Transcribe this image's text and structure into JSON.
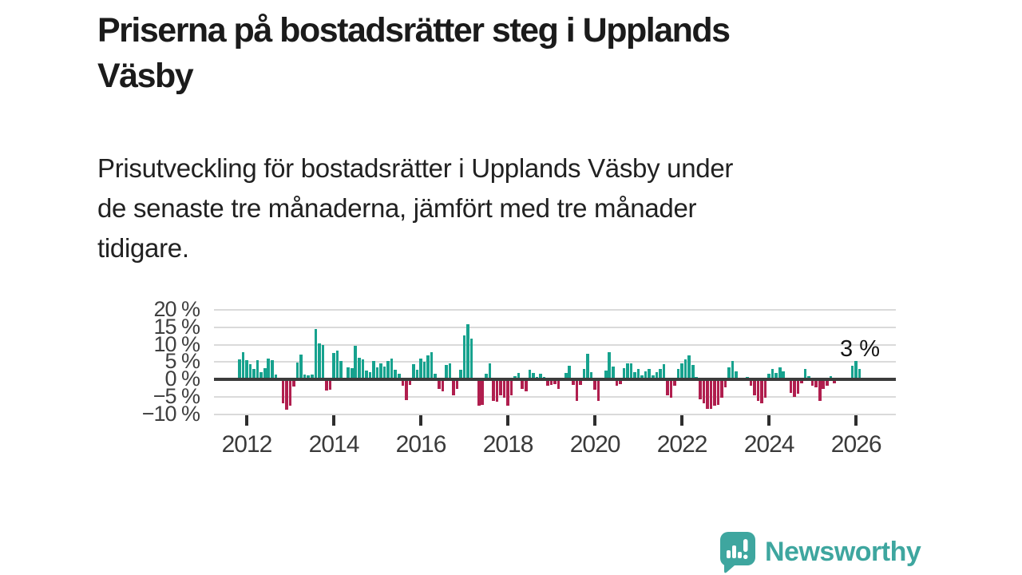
{
  "header": {
    "title": "Priserna på bostadsrätter steg i Upplands Väsby",
    "title_lines": [
      "Priserna på bostadsrätter steg i Upplands",
      "Väsby"
    ],
    "subtitle": "Prisutveckling för bostadsrätter i Upplands Väsby under de senaste tre månaderna, jämfört med tre månader tidigare.",
    "subtitle_lines": [
      "Prisutveckling för bostadsrätter i Upplands Väsby under",
      "de senaste tre månaderna, jämfört med tre månader",
      "tidigare."
    ]
  },
  "chart_data": {
    "type": "bar",
    "unit": "%",
    "interval": "monthly",
    "start": "2011-11",
    "ylim": [
      -10,
      20
    ],
    "grid": true,
    "yticks": [
      {
        "label": "20 %",
        "value": 20
      },
      {
        "label": "15 %",
        "value": 15
      },
      {
        "label": "10 %",
        "value": 10
      },
      {
        "label": "5 %",
        "value": 5
      },
      {
        "label": "0 %",
        "value": 0
      },
      {
        "label": "−5 %",
        "value": -5
      },
      {
        "label": "−10 %",
        "value": -10
      }
    ],
    "xticks": [
      "2012",
      "2014",
      "2016",
      "2018",
      "2020",
      "2022",
      "2024",
      "2026"
    ],
    "annotation": {
      "text": "3 %",
      "value": 3
    },
    "colors": {
      "positive": "#17a28e",
      "negative": "#b01e4e",
      "axis": "#3c3c3c",
      "grid": "#dadada"
    },
    "values": [
      5.8,
      7.9,
      5.6,
      4.4,
      3.1,
      5.6,
      2.1,
      3.3,
      5.9,
      5.6,
      1.3,
      0,
      -6.9,
      -8.7,
      -7.5,
      -2.1,
      4.8,
      7.2,
      1.4,
      1.2,
      1.3,
      14.5,
      10.3,
      9.8,
      -3.3,
      -3.1,
      7.7,
      8.3,
      5.4,
      0,
      3.5,
      3.3,
      9.7,
      6.2,
      5.8,
      2.6,
      2.1,
      5.4,
      3.5,
      4.6,
      3.7,
      5.4,
      5.9,
      2.7,
      1.5,
      -1.9,
      -6.0,
      -1.5,
      4.4,
      2.7,
      5.9,
      5.0,
      6.9,
      7.8,
      1.7,
      -2.7,
      -3.4,
      4.2,
      4.6,
      -4.6,
      -2.7,
      2.7,
      12.7,
      15.8,
      11.7,
      0,
      -7.7,
      -7.3,
      1.5,
      4.6,
      -6.2,
      -6.5,
      -4.6,
      -5.4,
      -7.7,
      -4.6,
      0.9,
      1.9,
      -2.7,
      -3.5,
      2.7,
      1.9,
      0.8,
      1.5,
      0.8,
      -1.9,
      -1.5,
      -1.4,
      -2.7,
      0,
      1.9,
      3.8,
      -1.5,
      -6.2,
      -1.7,
      3.0,
      7.4,
      2.0,
      -3.0,
      -6.2,
      0,
      2.6,
      7.8,
      3.7,
      -1.9,
      -1.4,
      3.3,
      4.6,
      4.6,
      2.1,
      2.9,
      1.2,
      2.3,
      3.0,
      1.2,
      2.0,
      2.9,
      4.4,
      -4.6,
      -5.4,
      -1.9,
      3.1,
      4.6,
      5.8,
      6.9,
      4.2,
      0.8,
      -5.8,
      -6.9,
      -8.5,
      -8.5,
      -7.7,
      -7.3,
      -5.4,
      -2.3,
      3.5,
      5.4,
      2.3,
      0,
      0,
      0.8,
      -1.9,
      -4.6,
      -6.2,
      -7.0,
      -5.4,
      1.5,
      3.1,
      1.9,
      3.5,
      2.3,
      0,
      -3.8,
      -5.0,
      -4.2,
      -1.2,
      3.1,
      0.9,
      -1.9,
      -2.3,
      -6.2,
      -2.7,
      -1.9,
      1.0,
      -1.2,
      0,
      0,
      0,
      0,
      3.8,
      5.2,
      3.0
    ]
  },
  "footer": {
    "brand_name": "Newsworthy",
    "brand_color": "#3ea69f",
    "logo_icon": "speech-bubble-bar-chart-icon"
  }
}
